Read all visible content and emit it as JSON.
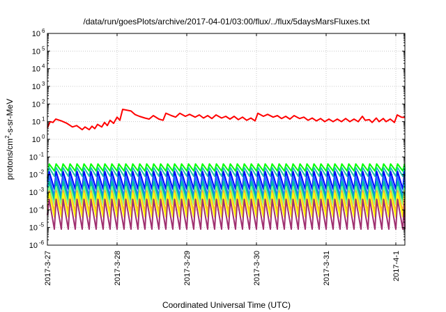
{
  "chart_data": {
    "type": "line",
    "title": "/data/run/goesPlots/archive/2017-04-01/03:00/flux/../flux/5daysMarsFluxes.txt",
    "xlabel": "Coordinated Universal Time (UTC)",
    "ylabel": {
      "base": "protons/cm",
      "sup": "2",
      "rest": "-s-sr-MeV"
    },
    "ylog": true,
    "ylim": [
      1e-06,
      1000000.0
    ],
    "xlim": [
      0,
      5.13
    ],
    "x_ticks": [
      {
        "x": 0,
        "label": "2017-3-27"
      },
      {
        "x": 1,
        "label": "2017-3-28"
      },
      {
        "x": 2,
        "label": "2017-3-29"
      },
      {
        "x": 3,
        "label": "2017-3-30"
      },
      {
        "x": 4,
        "label": "2017-3-31"
      },
      {
        "x": 5,
        "label": "2017-4-1"
      }
    ],
    "y_ticks": [
      {
        "value": 1000000.0,
        "base": "10",
        "exp": "6"
      },
      {
        "value": 100000.0,
        "base": "10",
        "exp": "5"
      },
      {
        "value": 10000.0,
        "base": "10",
        "exp": "4"
      },
      {
        "value": 1000.0,
        "base": "10",
        "exp": "3"
      },
      {
        "value": 100.0,
        "base": "10",
        "exp": "2"
      },
      {
        "value": 10.0,
        "base": "10",
        "exp": "1"
      },
      {
        "value": 1.0,
        "base": "10",
        "exp": "0"
      },
      {
        "value": 0.1,
        "base": "10",
        "exp": "-1"
      },
      {
        "value": 0.01,
        "base": "10",
        "exp": "-2"
      },
      {
        "value": 0.001,
        "base": "10",
        "exp": "-3"
      },
      {
        "value": 0.0001,
        "base": "10",
        "exp": "-4"
      },
      {
        "value": 1e-05,
        "base": "10",
        "exp": "-5"
      },
      {
        "value": 1e-06,
        "base": "10",
        "exp": "-6"
      }
    ],
    "grid": true,
    "legend": "none",
    "series": [
      {
        "color": "#ff0000",
        "points": [
          [
            0.0,
            4.5
          ],
          [
            0.04,
            10
          ],
          [
            0.08,
            9
          ],
          [
            0.12,
            14
          ],
          [
            0.2,
            11
          ],
          [
            0.28,
            8
          ],
          [
            0.36,
            5
          ],
          [
            0.42,
            6
          ],
          [
            0.5,
            3.5
          ],
          [
            0.54,
            5
          ],
          [
            0.6,
            3.5
          ],
          [
            0.64,
            5.5
          ],
          [
            0.68,
            4
          ],
          [
            0.72,
            7
          ],
          [
            0.78,
            5
          ],
          [
            0.82,
            9
          ],
          [
            0.86,
            6
          ],
          [
            0.9,
            12
          ],
          [
            0.95,
            8
          ],
          [
            1.0,
            18
          ],
          [
            1.04,
            12
          ],
          [
            1.08,
            50
          ],
          [
            1.2,
            40
          ],
          [
            1.26,
            25
          ],
          [
            1.32,
            20
          ],
          [
            1.4,
            16
          ],
          [
            1.46,
            14
          ],
          [
            1.52,
            22
          ],
          [
            1.6,
            14
          ],
          [
            1.66,
            12
          ],
          [
            1.7,
            30
          ],
          [
            1.78,
            22
          ],
          [
            1.84,
            18
          ],
          [
            1.9,
            30
          ],
          [
            1.98,
            20
          ],
          [
            2.04,
            26
          ],
          [
            2.12,
            18
          ],
          [
            2.18,
            24
          ],
          [
            2.24,
            16
          ],
          [
            2.3,
            22
          ],
          [
            2.36,
            15
          ],
          [
            2.42,
            24
          ],
          [
            2.5,
            16
          ],
          [
            2.56,
            20
          ],
          [
            2.62,
            14
          ],
          [
            2.68,
            20
          ],
          [
            2.74,
            13
          ],
          [
            2.8,
            18
          ],
          [
            2.86,
            12
          ],
          [
            2.92,
            16
          ],
          [
            2.98,
            11
          ],
          [
            3.02,
            30
          ],
          [
            3.1,
            20
          ],
          [
            3.16,
            26
          ],
          [
            3.24,
            18
          ],
          [
            3.3,
            22
          ],
          [
            3.36,
            15
          ],
          [
            3.42,
            20
          ],
          [
            3.48,
            14
          ],
          [
            3.54,
            22
          ],
          [
            3.62,
            15
          ],
          [
            3.68,
            18
          ],
          [
            3.74,
            12
          ],
          [
            3.8,
            16
          ],
          [
            3.86,
            11
          ],
          [
            3.92,
            15
          ],
          [
            3.98,
            10
          ],
          [
            4.04,
            14
          ],
          [
            4.1,
            10
          ],
          [
            4.16,
            14
          ],
          [
            4.22,
            10
          ],
          [
            4.28,
            15
          ],
          [
            4.34,
            10
          ],
          [
            4.4,
            14
          ],
          [
            4.46,
            10
          ],
          [
            4.52,
            20
          ],
          [
            4.56,
            12
          ],
          [
            4.62,
            13
          ],
          [
            4.66,
            9
          ],
          [
            4.72,
            16
          ],
          [
            4.76,
            10
          ],
          [
            4.82,
            15
          ],
          [
            4.86,
            10
          ],
          [
            4.92,
            14
          ],
          [
            4.98,
            9
          ],
          [
            5.02,
            24
          ],
          [
            5.08,
            18
          ],
          [
            5.13,
            17
          ]
        ]
      },
      {
        "color": "#00ff00",
        "ramp": true,
        "start": 0.006,
        "peak": 0.04,
        "trough": 0.016,
        "step": 0.1
      },
      {
        "color": "#20c0b0",
        "ramp": true,
        "start": 0.004,
        "peak": 0.025,
        "trough": 0.008,
        "step": 0.1
      },
      {
        "color": "#0000ff",
        "ramp": true,
        "start": 0.002,
        "peak": 0.015,
        "trough": 0.0015,
        "step": 0.1
      },
      {
        "color": "#1e78ff",
        "ramp": true,
        "start": 0.0008,
        "peak": 0.008,
        "trough": 0.0006,
        "step": 0.1
      },
      {
        "color": "#00bfa0",
        "ramp": true,
        "start": 0.0005,
        "peak": 0.004,
        "trough": 0.00035,
        "step": 0.1
      },
      {
        "color": "#7fff7f",
        "ramp": true,
        "start": 0.0003,
        "peak": 0.002,
        "trough": 0.0002,
        "step": 0.1
      },
      {
        "color": "#ffa040",
        "ramp": true,
        "start": 0.00015,
        "peak": 0.0012,
        "trough": 8e-05,
        "step": 0.1
      },
      {
        "color": "#ffff00",
        "ramp": true,
        "start": 0.0001,
        "peak": 0.0009,
        "trough": 4e-05,
        "step": 0.1
      },
      {
        "color": "#a03070",
        "ramp": true,
        "start": 5e-05,
        "peak": 0.0004,
        "trough": 8e-06,
        "step": 0.1
      }
    ]
  }
}
